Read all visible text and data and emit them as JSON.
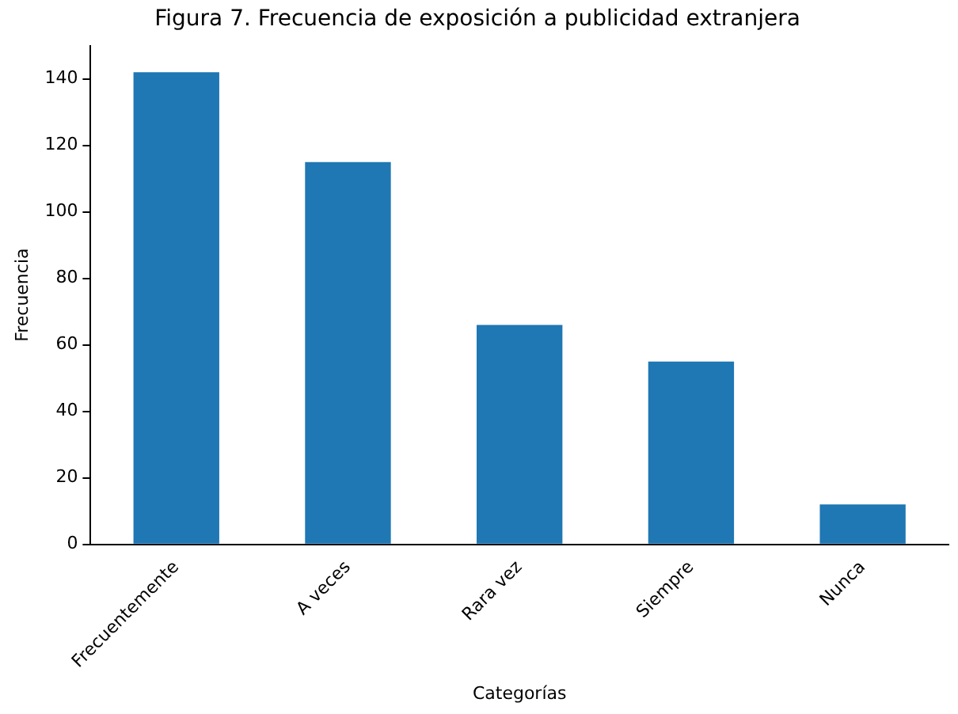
{
  "chart_data": {
    "type": "bar",
    "title": "Figura 7. Frecuencia de exposición a publicidad extranjera",
    "xlabel": "Categorías",
    "ylabel": "Frecuencia",
    "categories": [
      "Frecuentemente",
      "A veces",
      "Rara vez",
      "Siempre",
      "Nunca"
    ],
    "values": [
      142,
      115,
      66,
      55,
      12
    ],
    "color": "#1f77b4",
    "ylim": [
      0,
      150
    ],
    "yticks": [
      0,
      20,
      40,
      60,
      80,
      100,
      120,
      140
    ],
    "grid": false,
    "legend": false
  }
}
